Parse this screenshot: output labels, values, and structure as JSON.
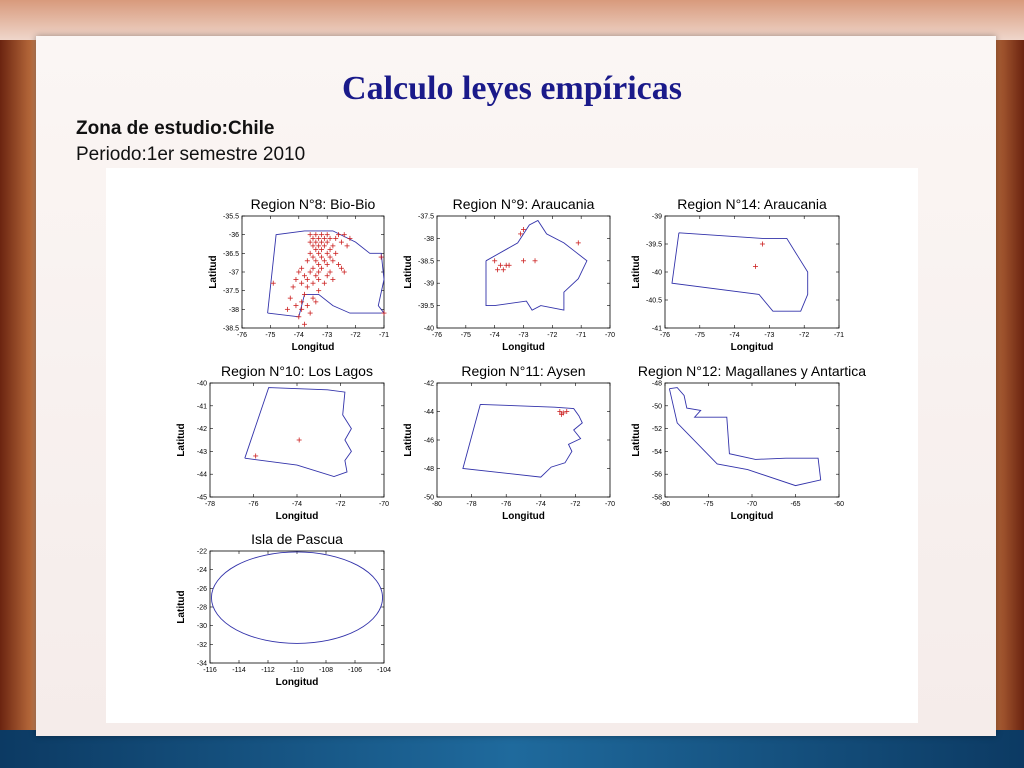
{
  "slide": {
    "title": "Calculo leyes empíricas",
    "zone": "Zona de estudio:Chile",
    "period": "Periodo:1er semestre 2010"
  },
  "colors": {
    "boundary": "#3333aa",
    "marker": "#cc2222",
    "title": "#1a1a8a"
  },
  "chart_data": [
    {
      "type": "scatter",
      "title": "Region N°8: Bio-Bio",
      "xlabel": "Longitud",
      "ylabel": "Latitud",
      "xlim": [
        -76,
        -71
      ],
      "ylim": [
        -38.5,
        -35.5
      ],
      "xticks": [
        -76,
        -75,
        -74,
        -73,
        -72,
        -71
      ],
      "yticks": [
        -35.5,
        -36,
        -36.5,
        -37,
        -37.5,
        -38,
        -38.5
      ],
      "boundary": [
        [
          -75.1,
          -38.1
        ],
        [
          -74.8,
          -36.0
        ],
        [
          -73.8,
          -35.9
        ],
        [
          -72.8,
          -35.9
        ],
        [
          -72.0,
          -36.2
        ],
        [
          -71.5,
          -36.5
        ],
        [
          -71.1,
          -36.5
        ],
        [
          -71.0,
          -37.2
        ],
        [
          -71.2,
          -37.9
        ],
        [
          -71.0,
          -38.1
        ],
        [
          -72.2,
          -38.1
        ],
        [
          -72.8,
          -37.9
        ],
        [
          -73.3,
          -37.6
        ],
        [
          -73.8,
          -37.6
        ],
        [
          -74.0,
          -38.2
        ],
        [
          -75.1,
          -38.1
        ]
      ],
      "points": [
        [
          -73.6,
          -36.0
        ],
        [
          -73.4,
          -36.0
        ],
        [
          -73.2,
          -36.0
        ],
        [
          -73.0,
          -36.0
        ],
        [
          -72.6,
          -36.0
        ],
        [
          -72.4,
          -36.0
        ],
        [
          -73.5,
          -36.1
        ],
        [
          -73.3,
          -36.1
        ],
        [
          -73.1,
          -36.1
        ],
        [
          -72.9,
          -36.1
        ],
        [
          -72.7,
          -36.1
        ],
        [
          -73.6,
          -36.2
        ],
        [
          -73.4,
          -36.2
        ],
        [
          -73.2,
          -36.2
        ],
        [
          -73.0,
          -36.2
        ],
        [
          -72.5,
          -36.2
        ],
        [
          -73.5,
          -36.3
        ],
        [
          -73.3,
          -36.3
        ],
        [
          -73.1,
          -36.3
        ],
        [
          -72.8,
          -36.3
        ],
        [
          -73.4,
          -36.4
        ],
        [
          -73.2,
          -36.4
        ],
        [
          -72.9,
          -36.4
        ],
        [
          -72.3,
          -36.3
        ],
        [
          -73.6,
          -36.5
        ],
        [
          -73.3,
          -36.5
        ],
        [
          -73.0,
          -36.5
        ],
        [
          -72.7,
          -36.5
        ],
        [
          -73.5,
          -36.6
        ],
        [
          -73.2,
          -36.6
        ],
        [
          -72.9,
          -36.6
        ],
        [
          -73.7,
          -36.7
        ],
        [
          -73.4,
          -36.7
        ],
        [
          -73.1,
          -36.7
        ],
        [
          -72.8,
          -36.7
        ],
        [
          -73.3,
          -36.8
        ],
        [
          -73.0,
          -36.8
        ],
        [
          -72.6,
          -36.8
        ],
        [
          -73.9,
          -36.9
        ],
        [
          -73.5,
          -36.9
        ],
        [
          -73.2,
          -36.9
        ],
        [
          -72.5,
          -36.9
        ],
        [
          -74.0,
          -37.0
        ],
        [
          -73.6,
          -37.0
        ],
        [
          -73.3,
          -37.0
        ],
        [
          -72.9,
          -37.0
        ],
        [
          -72.4,
          -37.0
        ],
        [
          -73.8,
          -37.1
        ],
        [
          -73.4,
          -37.1
        ],
        [
          -73.0,
          -37.1
        ],
        [
          -74.1,
          -37.2
        ],
        [
          -73.7,
          -37.2
        ],
        [
          -73.3,
          -37.2
        ],
        [
          -72.8,
          -37.2
        ],
        [
          -73.9,
          -37.3
        ],
        [
          -73.5,
          -37.3
        ],
        [
          -73.1,
          -37.3
        ],
        [
          -74.2,
          -37.4
        ],
        [
          -73.7,
          -37.4
        ],
        [
          -73.3,
          -37.5
        ],
        [
          -73.8,
          -37.6
        ],
        [
          -73.5,
          -37.7
        ],
        [
          -74.3,
          -37.7
        ],
        [
          -73.9,
          -37.8
        ],
        [
          -73.4,
          -37.8
        ],
        [
          -74.1,
          -37.9
        ],
        [
          -73.7,
          -37.9
        ],
        [
          -74.4,
          -38.0
        ],
        [
          -73.9,
          -38.0
        ],
        [
          -73.6,
          -38.1
        ],
        [
          -74.0,
          -38.2
        ],
        [
          -73.8,
          -38.4
        ],
        [
          -71.1,
          -36.6
        ],
        [
          -71.0,
          -38.1
        ],
        [
          -72.2,
          -36.1
        ],
        [
          -74.9,
          -37.3
        ]
      ]
    },
    {
      "type": "scatter",
      "title": "Region N°9: Araucania",
      "xlabel": "Longitud",
      "ylabel": "Latitud",
      "xlim": [
        -76,
        -70
      ],
      "ylim": [
        -40,
        -37.5
      ],
      "xticks": [
        -76,
        -75,
        -74,
        -73,
        -72,
        -71,
        -70
      ],
      "yticks": [
        -37.5,
        -38,
        -38.5,
        -39,
        -39.5,
        -40
      ],
      "boundary": [
        [
          -74.3,
          -38.5
        ],
        [
          -73.2,
          -38.1
        ],
        [
          -72.8,
          -37.7
        ],
        [
          -72.5,
          -37.6
        ],
        [
          -72.2,
          -37.9
        ],
        [
          -71.6,
          -38.1
        ],
        [
          -71.2,
          -38.3
        ],
        [
          -70.8,
          -38.5
        ],
        [
          -71.1,
          -38.9
        ],
        [
          -71.6,
          -39.2
        ],
        [
          -71.6,
          -39.6
        ],
        [
          -72.4,
          -39.5
        ],
        [
          -72.7,
          -39.6
        ],
        [
          -72.9,
          -39.4
        ],
        [
          -74.0,
          -39.5
        ],
        [
          -74.3,
          -39.5
        ],
        [
          -74.3,
          -38.5
        ]
      ],
      "points": [
        [
          -73.0,
          -37.8
        ],
        [
          -73.1,
          -37.9
        ],
        [
          -74.0,
          -38.5
        ],
        [
          -73.8,
          -38.6
        ],
        [
          -73.7,
          -38.7
        ],
        [
          -73.6,
          -38.6
        ],
        [
          -73.5,
          -38.6
        ],
        [
          -73.0,
          -38.5
        ],
        [
          -72.6,
          -38.5
        ],
        [
          -71.1,
          -38.1
        ],
        [
          -73.9,
          -38.7
        ]
      ]
    },
    {
      "type": "scatter",
      "title": "Region N°14: Araucania",
      "xlabel": "Longitud",
      "ylabel": "Latitud",
      "xlim": [
        -76,
        -71
      ],
      "ylim": [
        -41,
        -39
      ],
      "xticks": [
        -76,
        -75,
        -74,
        -73,
        -72,
        -71
      ],
      "yticks": [
        -39,
        -39.5,
        -40,
        -40.5,
        -41
      ],
      "boundary": [
        [
          -75.6,
          -39.3
        ],
        [
          -73.2,
          -39.4
        ],
        [
          -72.5,
          -39.4
        ],
        [
          -72.2,
          -39.7
        ],
        [
          -71.9,
          -40.0
        ],
        [
          -71.9,
          -40.4
        ],
        [
          -72.1,
          -40.7
        ],
        [
          -72.9,
          -40.7
        ],
        [
          -73.3,
          -40.4
        ],
        [
          -75.8,
          -40.2
        ],
        [
          -75.6,
          -39.3
        ]
      ],
      "points": [
        [
          -73.2,
          -39.5
        ],
        [
          -73.4,
          -39.9
        ]
      ]
    },
    {
      "type": "scatter",
      "title": "Region N°10: Los Lagos",
      "xlabel": "Longitud",
      "ylabel": "Latitud",
      "xlim": [
        -78,
        -70
      ],
      "ylim": [
        -45,
        -40
      ],
      "xticks": [
        -78,
        -76,
        -74,
        -72,
        -70
      ],
      "yticks": [
        -40,
        -41,
        -42,
        -43,
        -44,
        -45
      ],
      "boundary": [
        [
          -76.4,
          -43.3
        ],
        [
          -75.3,
          -40.2
        ],
        [
          -72.6,
          -40.3
        ],
        [
          -71.8,
          -40.4
        ],
        [
          -71.9,
          -41.4
        ],
        [
          -71.5,
          -42.0
        ],
        [
          -71.8,
          -42.5
        ],
        [
          -71.5,
          -43.0
        ],
        [
          -71.8,
          -43.4
        ],
        [
          -71.7,
          -43.9
        ],
        [
          -72.3,
          -44.1
        ],
        [
          -74.0,
          -43.6
        ],
        [
          -76.4,
          -43.3
        ]
      ],
      "points": [
        [
          -73.9,
          -42.5
        ],
        [
          -75.9,
          -43.2
        ]
      ]
    },
    {
      "type": "scatter",
      "title": "Region N°11: Aysen",
      "xlabel": "Longitud",
      "ylabel": "Latitud",
      "xlim": [
        -80,
        -70
      ],
      "ylim": [
        -50,
        -42
      ],
      "xticks": [
        -80,
        -78,
        -76,
        -74,
        -72,
        -70
      ],
      "yticks": [
        -42,
        -44,
        -46,
        -48,
        -50
      ],
      "boundary": [
        [
          -77.5,
          -43.5
        ],
        [
          -73.2,
          -43.7
        ],
        [
          -72.1,
          -43.8
        ],
        [
          -71.8,
          -44.3
        ],
        [
          -71.6,
          -44.8
        ],
        [
          -72.1,
          -45.3
        ],
        [
          -71.7,
          -45.9
        ],
        [
          -72.4,
          -46.3
        ],
        [
          -72.2,
          -46.8
        ],
        [
          -72.6,
          -47.6
        ],
        [
          -73.4,
          -47.9
        ],
        [
          -74.0,
          -48.6
        ],
        [
          -78.5,
          -48.0
        ],
        [
          -77.5,
          -43.5
        ]
      ],
      "points": [
        [
          -72.9,
          -44.0
        ],
        [
          -72.7,
          -44.1
        ],
        [
          -72.5,
          -44.0
        ],
        [
          -72.8,
          -44.2
        ]
      ]
    },
    {
      "type": "scatter",
      "title": "Region N°12: Magallanes y Antartica",
      "xlabel": "Longitud",
      "ylabel": "Latitud",
      "xlim": [
        -80,
        -60
      ],
      "ylim": [
        -58,
        -48
      ],
      "xticks": [
        -80,
        -75,
        -70,
        -65,
        -60
      ],
      "yticks": [
        -48,
        -50,
        -52,
        -54,
        -56,
        -58
      ],
      "boundary": [
        [
          -79.5,
          -48.5
        ],
        [
          -78.6,
          -48.4
        ],
        [
          -77.8,
          -49.1
        ],
        [
          -77.5,
          -50.2
        ],
        [
          -75.9,
          -50.4
        ],
        [
          -76.6,
          -51.0
        ],
        [
          -72.9,
          -51.0
        ],
        [
          -72.6,
          -54.2
        ],
        [
          -69.6,
          -54.7
        ],
        [
          -66.1,
          -54.6
        ],
        [
          -62.4,
          -54.6
        ],
        [
          -62.1,
          -56.5
        ],
        [
          -65.0,
          -57.0
        ],
        [
          -70.5,
          -55.6
        ],
        [
          -74.0,
          -55.1
        ],
        [
          -78.6,
          -51.5
        ],
        [
          -79.5,
          -48.5
        ]
      ],
      "points": []
    },
    {
      "type": "scatter",
      "title": "Isla de Pascua",
      "xlabel": "Longitud",
      "ylabel": "Latitud",
      "xlim": [
        -116,
        -104
      ],
      "ylim": [
        -34,
        -22
      ],
      "xticks": [
        -116,
        -114,
        -112,
        -110,
        -108,
        -106,
        -104
      ],
      "yticks": [
        -22,
        -24,
        -26,
        -28,
        -30,
        -32,
        -34
      ],
      "ellipse": {
        "cx": -110,
        "cy": -27,
        "rx": 5.9,
        "ry": 4.9
      },
      "points": []
    }
  ]
}
